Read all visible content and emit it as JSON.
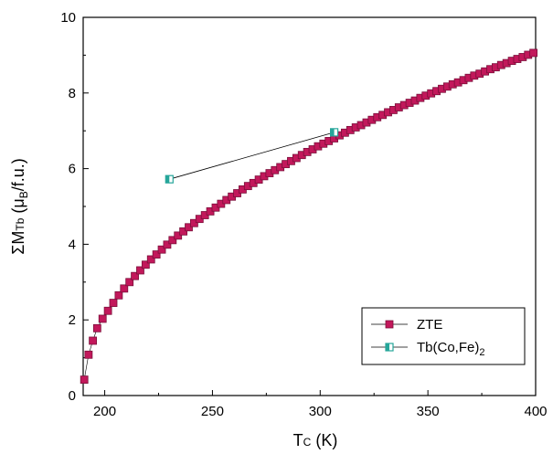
{
  "chart_data": {
    "type": "scatter",
    "xlabel": "TC (K)",
    "ylabel": "ΣMTb (μB/f.u.)",
    "xlim": [
      190,
      400
    ],
    "ylim": [
      0,
      10
    ],
    "xticks": [
      200,
      250,
      300,
      350,
      400
    ],
    "yticks": [
      0,
      2,
      4,
      6,
      8,
      10
    ],
    "grid": false,
    "legend_position": "bottom-right",
    "series": [
      {
        "name": "ZTE",
        "color": "#c2185b",
        "marker": "square-filled",
        "x": [
          190.5,
          192.5,
          194.5,
          196.5,
          199,
          201.5,
          204,
          206.5,
          209,
          211.5,
          214,
          216.5,
          219,
          221.5,
          224,
          226.5,
          229,
          231.5,
          234,
          236.5,
          239,
          241.5,
          244,
          246.5,
          249,
          251.5,
          254,
          256.5,
          259,
          261.5,
          264,
          266.5,
          269,
          271.5,
          274,
          276.5,
          279,
          281.5,
          284,
          286.5,
          289,
          291.5,
          294,
          296.5,
          299,
          301.5,
          304,
          306.5,
          309,
          311.5,
          314,
          316.5,
          319,
          321.5,
          324,
          326.5,
          329,
          331.5,
          334,
          336.5,
          339,
          341.5,
          344,
          346.5,
          349,
          351.5,
          354,
          356.5,
          359,
          361.5,
          364,
          366.5,
          369,
          371.5,
          374,
          376.5,
          379,
          381.5,
          384,
          386.5,
          389,
          391.5,
          394,
          396.5,
          399
        ],
        "y": [
          0.42,
          1.08,
          1.45,
          1.78,
          2.03,
          2.24,
          2.45,
          2.65,
          2.83,
          3.0,
          3.16,
          3.31,
          3.46,
          3.6,
          3.73,
          3.86,
          3.99,
          4.11,
          4.23,
          4.34,
          4.45,
          4.56,
          4.67,
          4.77,
          4.87,
          4.97,
          5.07,
          5.17,
          5.26,
          5.35,
          5.45,
          5.54,
          5.62,
          5.71,
          5.8,
          5.88,
          5.96,
          6.04,
          6.12,
          6.2,
          6.28,
          6.36,
          6.44,
          6.51,
          6.59,
          6.66,
          6.73,
          6.8,
          6.88,
          6.95,
          7.02,
          7.09,
          7.15,
          7.22,
          7.29,
          7.36,
          7.42,
          7.49,
          7.55,
          7.62,
          7.68,
          7.74,
          7.8,
          7.87,
          7.93,
          7.99,
          8.05,
          8.11,
          8.17,
          8.23,
          8.28,
          8.34,
          8.4,
          8.46,
          8.51,
          8.57,
          8.63,
          8.68,
          8.74,
          8.79,
          8.85,
          8.9,
          8.95,
          9.01,
          9.06
        ]
      },
      {
        "name": "Tb(Co,Fe)2",
        "color": "#26a69a",
        "marker": "square-half-filled",
        "x": [
          230,
          306.5
        ],
        "y": [
          5.72,
          6.96
        ]
      }
    ]
  }
}
